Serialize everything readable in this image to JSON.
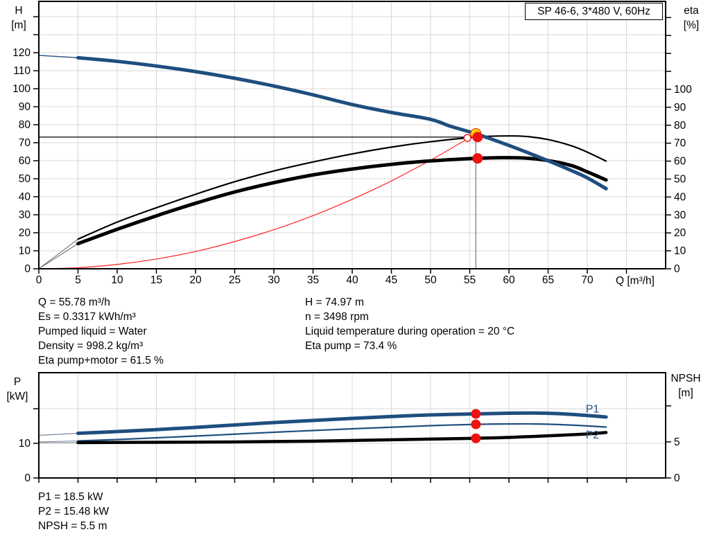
{
  "title_box": "SP 46-6, 3*480 V, 60Hz",
  "colors": {
    "grid": "#d7d7d7",
    "blue": "#1e4e7e",
    "red": "#ee1111",
    "yellow": "#ffd700",
    "axis": "#000000",
    "duty_v_line": "#808080"
  },
  "annotations": {
    "left": [
      "Q = 55.78 m³/h",
      "Es = 0.3317 kWh/m³",
      "Pumped liquid = Water",
      "Density = 998.2 kg/m³",
      "Eta pump+motor = 61.5 %"
    ],
    "right": [
      "H = 74.97 m",
      "n = 3498 rpm",
      "Liquid temperature during operation = 20 °C",
      "Eta pump = 73.4 %"
    ],
    "bottom": [
      "P1 = 18.5 kW",
      "P2 = 15.48 kW",
      "NPSH = 5.5 m"
    ]
  },
  "chart_data": [
    {
      "type": "line",
      "id": "qh-eta",
      "title": "SP 46-6, 3*480 V, 60Hz",
      "xlabel": "Q [m³/h]",
      "ylabel_left_lines": [
        "H",
        "[m]"
      ],
      "ylabel_right_lines": [
        "eta",
        "[%]"
      ],
      "xlim": [
        0,
        80
      ],
      "ylim_left": [
        0,
        148.5
      ],
      "ylim_right": [
        0,
        149
      ],
      "grid": true,
      "x_ticks": [
        [
          0,
          "0"
        ],
        [
          5,
          "5"
        ],
        [
          10,
          "10"
        ],
        [
          15,
          "15"
        ],
        [
          20,
          "20"
        ],
        [
          25,
          "25"
        ],
        [
          30,
          "30"
        ],
        [
          35,
          "35"
        ],
        [
          40,
          "40"
        ],
        [
          45,
          "45"
        ],
        [
          50,
          "50"
        ],
        [
          55,
          "55"
        ],
        [
          60,
          "60"
        ],
        [
          65,
          "65"
        ],
        [
          70,
          "70"
        ],
        [
          75,
          ""
        ]
      ],
      "x_grid": [
        5,
        10,
        15,
        20,
        25,
        30,
        35,
        40,
        45,
        50,
        55,
        60,
        65,
        70,
        75
      ],
      "left_ticks": [
        [
          0,
          "0"
        ],
        [
          10,
          "10"
        ],
        [
          20,
          "20"
        ],
        [
          30,
          "30"
        ],
        [
          40,
          "40"
        ],
        [
          50,
          "50"
        ],
        [
          60,
          "60"
        ],
        [
          70,
          "70"
        ],
        [
          80,
          "80"
        ],
        [
          90,
          "90"
        ],
        [
          100,
          "100"
        ],
        [
          110,
          "110"
        ],
        [
          120,
          "120"
        ],
        [
          130,
          ""
        ],
        [
          140,
          ""
        ]
      ],
      "right_ticks": [
        [
          0,
          "0"
        ],
        [
          10,
          "10"
        ],
        [
          20,
          "20"
        ],
        [
          30,
          "30"
        ],
        [
          40,
          "40"
        ],
        [
          50,
          "50"
        ],
        [
          60,
          "60"
        ],
        [
          70,
          "70"
        ],
        [
          80,
          "80"
        ],
        [
          90,
          "90"
        ],
        [
          100,
          "100"
        ],
        [
          110,
          ""
        ],
        [
          120,
          ""
        ],
        [
          130,
          ""
        ],
        [
          140,
          ""
        ]
      ],
      "y_grid": [
        10,
        20,
        30,
        40,
        50,
        60,
        70,
        80,
        90,
        100,
        110,
        120,
        130,
        140
      ],
      "series": [
        {
          "name": "system-curve",
          "axis": "left",
          "color": "#ff2222",
          "width": 1.2,
          "points": [
            [
              0,
              0
            ],
            [
              5,
              0.6
            ],
            [
              10,
              2.4
            ],
            [
              15,
              5.4
            ],
            [
              20,
              9.6
            ],
            [
              25,
              15.1
            ],
            [
              30,
              21.7
            ],
            [
              35,
              29.5
            ],
            [
              40,
              38.6
            ],
            [
              45,
              48.8
            ],
            [
              50,
              60.3
            ],
            [
              53,
              67.8
            ],
            [
              55.78,
              74.97
            ]
          ]
        },
        {
          "name": "eta-pump-curve",
          "axis": "right",
          "color": "#000000",
          "width": 2.2,
          "leader": [
            [
              0,
              0
            ],
            [
              5,
              16.5
            ]
          ],
          "leader_color": "#666666",
          "leader_width": 1,
          "points": [
            [
              5,
              16.5
            ],
            [
              10,
              26
            ],
            [
              15,
              34
            ],
            [
              20,
              41.5
            ],
            [
              25,
              48.5
            ],
            [
              30,
              54.5
            ],
            [
              35,
              59.5
            ],
            [
              40,
              64
            ],
            [
              45,
              67.8
            ],
            [
              50,
              70.8
            ],
            [
              55.78,
              73.4
            ],
            [
              59,
              74
            ],
            [
              62,
              73.8
            ],
            [
              65,
              72
            ],
            [
              68,
              68.5
            ],
            [
              70,
              65
            ],
            [
              72.4,
              60
            ]
          ]
        },
        {
          "name": "eta-pump-motor-curve",
          "axis": "right",
          "color": "#000000",
          "width": 5,
          "leader": [
            [
              0,
              0
            ],
            [
              5,
              14
            ]
          ],
          "leader_color": "#666666",
          "leader_width": 1,
          "points": [
            [
              5,
              14
            ],
            [
              10,
              22
            ],
            [
              15,
              29.5
            ],
            [
              20,
              36.5
            ],
            [
              25,
              42.8
            ],
            [
              30,
              48
            ],
            [
              35,
              52.3
            ],
            [
              40,
              55.6
            ],
            [
              45,
              58.2
            ],
            [
              50,
              60.1
            ],
            [
              55.78,
              61.5
            ],
            [
              59,
              61.9
            ],
            [
              62,
              61.7
            ],
            [
              65,
              60.3
            ],
            [
              68,
              57.5
            ],
            [
              70,
              54
            ],
            [
              72.4,
              49.5
            ]
          ]
        },
        {
          "name": "head-curve",
          "axis": "left",
          "color": "#1e4e7e",
          "width": 5,
          "leader": [
            [
              0,
              118.5
            ],
            [
              5,
              117.2
            ]
          ],
          "leader_color": "#1e4e7e",
          "leader_width": 1.4,
          "points": [
            [
              5,
              117.2
            ],
            [
              10,
              115.2
            ],
            [
              15,
              112.6
            ],
            [
              20,
              109.5
            ],
            [
              25,
              105.8
            ],
            [
              30,
              101.5
            ],
            [
              35,
              96.6
            ],
            [
              40,
              91.2
            ],
            [
              45,
              86.8
            ],
            [
              50,
              83
            ],
            [
              52.5,
              79.2
            ],
            [
              55.78,
              74.97
            ],
            [
              60,
              68.5
            ],
            [
              65,
              60
            ],
            [
              68,
              54.5
            ],
            [
              70,
              50.5
            ],
            [
              72.4,
              44.5
            ]
          ]
        }
      ],
      "duty": {
        "h_line": {
          "axis": "right",
          "value": 73.4,
          "q1": 0,
          "q2": 55.78
        },
        "v_line": {
          "axis": "right",
          "from": 73.4,
          "q": 55.78
        }
      },
      "markers": [
        {
          "name": "duty-point-eta-hollow",
          "q": 54.7,
          "v": 72.9,
          "axis": "right",
          "r": 5,
          "fill": "#ffffff",
          "stroke": "#ee1111",
          "sw": 1.4
        },
        {
          "name": "duty-point-head",
          "q": 55.78,
          "v": 74.97,
          "axis": "left",
          "r": 7.5,
          "fill": "#ffd700",
          "stroke": "#ee1111",
          "sw": 1
        },
        {
          "name": "duty-point-eta-pump",
          "q": 56.0,
          "v": 73.4,
          "axis": "right",
          "r": 7.5,
          "fill": "#ee1111"
        },
        {
          "name": "duty-point-eta-motor",
          "q": 56.0,
          "v": 61.5,
          "axis": "right",
          "r": 7.5,
          "fill": "#ee1111"
        }
      ],
      "curve_labels": []
    },
    {
      "type": "line",
      "id": "power-npsh",
      "xlabel": "",
      "ylabel_left_lines": [
        "P",
        "[kW]"
      ],
      "ylabel_right_lines": [
        "NPSH",
        "[m]"
      ],
      "xlim": [
        0,
        80
      ],
      "ylim_left": [
        0,
        30.4
      ],
      "ylim_right": [
        0,
        14.6
      ],
      "grid": true,
      "x_ticks": [
        [
          0,
          ""
        ],
        [
          5,
          ""
        ],
        [
          10,
          ""
        ],
        [
          15,
          ""
        ],
        [
          20,
          ""
        ],
        [
          25,
          ""
        ],
        [
          30,
          ""
        ],
        [
          35,
          ""
        ],
        [
          40,
          ""
        ],
        [
          45,
          ""
        ],
        [
          50,
          ""
        ],
        [
          55,
          ""
        ],
        [
          60,
          ""
        ],
        [
          65,
          ""
        ],
        [
          70,
          ""
        ],
        [
          75,
          ""
        ]
      ],
      "x_grid": [
        5,
        10,
        15,
        20,
        25,
        30,
        35,
        40,
        45,
        50,
        55,
        60,
        65,
        70,
        75
      ],
      "left_ticks": [
        [
          0,
          "0"
        ],
        [
          10,
          "10"
        ],
        [
          20,
          ""
        ]
      ],
      "right_ticks": [
        [
          0,
          "0"
        ],
        [
          5,
          "5"
        ],
        [
          10,
          ""
        ]
      ],
      "y_grid": [
        10,
        20
      ],
      "series": [
        {
          "name": "p1-power-curve",
          "axis": "left",
          "color": "#1e4e7e",
          "width": 5,
          "leader": [
            [
              0,
              12.3
            ],
            [
              5,
              12.9
            ]
          ],
          "leader_color": "#7787a0",
          "leader_width": 1.2,
          "points": [
            [
              5,
              12.9
            ],
            [
              10,
              13.4
            ],
            [
              15,
              13.95
            ],
            [
              20,
              14.6
            ],
            [
              25,
              15.3
            ],
            [
              30,
              16
            ],
            [
              35,
              16.6
            ],
            [
              40,
              17.2
            ],
            [
              45,
              17.75
            ],
            [
              50,
              18.2
            ],
            [
              55.78,
              18.5
            ],
            [
              60,
              18.7
            ],
            [
              63,
              18.75
            ],
            [
              66,
              18.6
            ],
            [
              69,
              18.2
            ],
            [
              72.4,
              17.6
            ]
          ]
        },
        {
          "name": "p2-power-curve",
          "axis": "left",
          "color": "#1e4e7e",
          "width": 2.2,
          "leader": [
            [
              0,
              10.4
            ],
            [
              5,
              10.7
            ]
          ],
          "leader_color": "#7787a0",
          "leader_width": 1,
          "points": [
            [
              5,
              10.7
            ],
            [
              10,
              11.1
            ],
            [
              15,
              11.6
            ],
            [
              20,
              12.1
            ],
            [
              25,
              12.65
            ],
            [
              30,
              13.2
            ],
            [
              35,
              13.7
            ],
            [
              40,
              14.2
            ],
            [
              45,
              14.65
            ],
            [
              50,
              15.1
            ],
            [
              55.78,
              15.48
            ],
            [
              60,
              15.6
            ],
            [
              63,
              15.6
            ],
            [
              66,
              15.45
            ],
            [
              69,
              15.15
            ],
            [
              72.4,
              14.7
            ]
          ]
        },
        {
          "name": "npsh-curve",
          "axis": "right",
          "color": "#000000",
          "width": 4.5,
          "leader": [
            [
              0,
              4.9
            ],
            [
              5,
              4.9
            ]
          ],
          "leader_color": "#888888",
          "leader_width": 1,
          "points": [
            [
              5,
              4.9
            ],
            [
              15,
              4.95
            ],
            [
              25,
              5.0
            ],
            [
              35,
              5.1
            ],
            [
              45,
              5.3
            ],
            [
              55.78,
              5.5
            ],
            [
              60,
              5.62
            ],
            [
              65,
              5.85
            ],
            [
              70,
              6.1
            ],
            [
              72.4,
              6.3
            ]
          ]
        }
      ],
      "markers": [
        {
          "name": "duty-point-p1",
          "q": 55.78,
          "v": 18.5,
          "axis": "left",
          "r": 7,
          "fill": "#ee1111"
        },
        {
          "name": "duty-point-p2",
          "q": 55.78,
          "v": 15.48,
          "axis": "left",
          "r": 7,
          "fill": "#ee1111"
        },
        {
          "name": "duty-point-npsh",
          "q": 55.78,
          "v": 5.5,
          "axis": "right",
          "r": 7,
          "fill": "#ee1111"
        }
      ],
      "curve_labels": [
        {
          "text": "P1",
          "q": 69.8,
          "v": 18.9,
          "axis": "left",
          "color": "#1e4e7e"
        },
        {
          "text": "P2",
          "q": 69.8,
          "v": 11.4,
          "axis": "left",
          "color": "#1e4e7e"
        }
      ]
    }
  ]
}
